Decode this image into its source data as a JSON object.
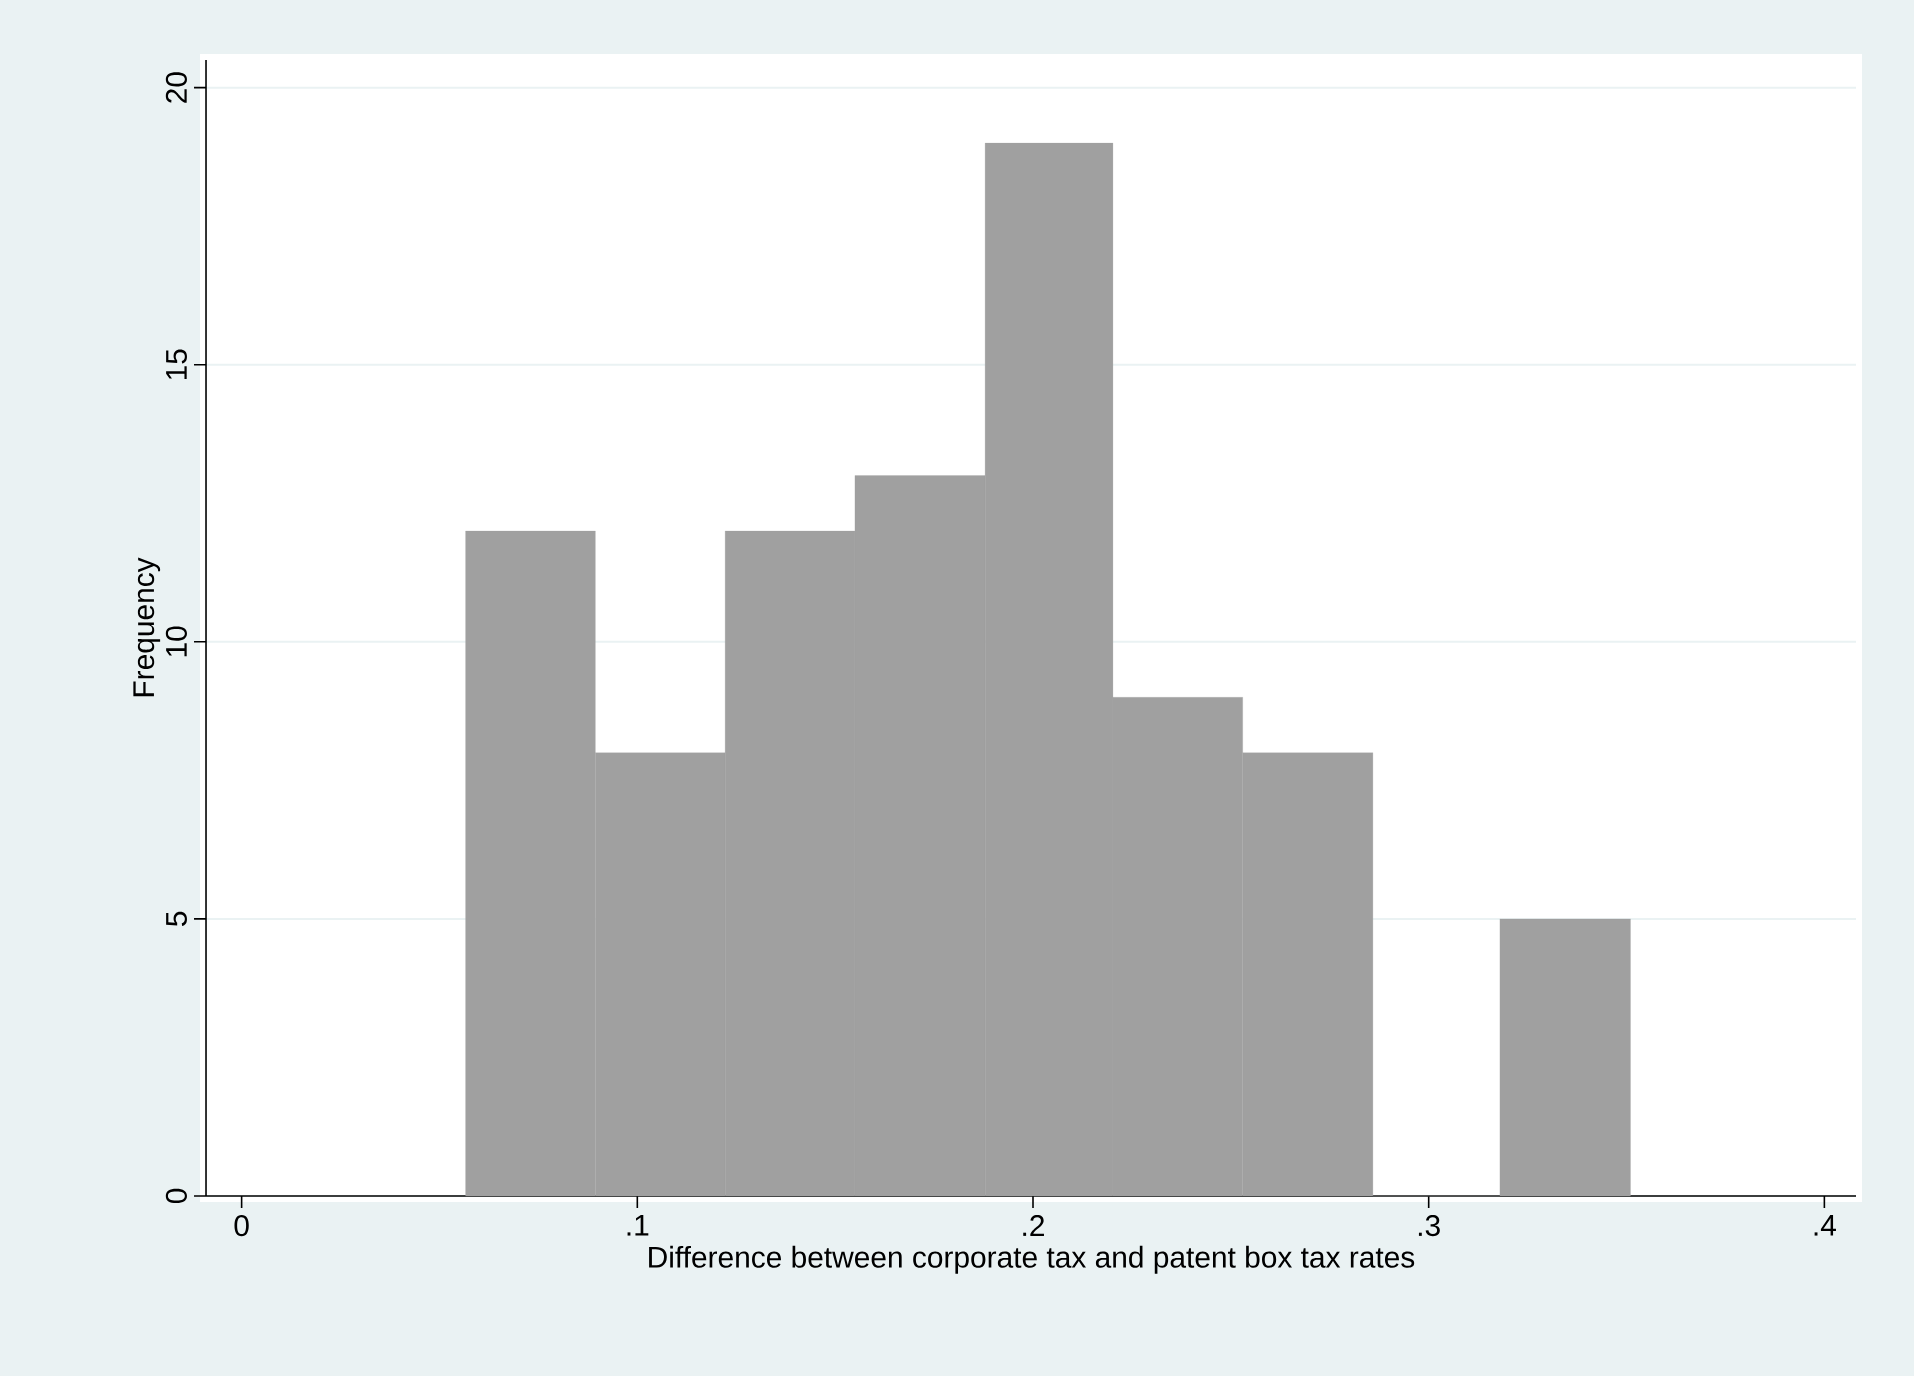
{
  "chart_data": {
    "type": "histogram",
    "xlabel": "Difference between corporate tax and patent box tax rates",
    "ylabel": "Frequency",
    "bins": [
      0.0566,
      0.0894,
      0.1222,
      0.155,
      0.1879,
      0.2202,
      0.253,
      0.2859,
      0.318,
      0.351
    ],
    "values": [
      12,
      8,
      12,
      13,
      19,
      9,
      8,
      0,
      5
    ],
    "color": "#a0a0a0",
    "xlim": [
      -0.009,
      0.408
    ],
    "ylim": [
      0,
      20.5
    ],
    "xticks": [
      0,
      {
        "value": 0.1,
        "label": ".1"
      },
      {
        "value": 0.2,
        "label": ".2"
      },
      {
        "value": 0.3,
        "label": ".3"
      },
      {
        "value": 0.4,
        "label": ".4"
      }
    ],
    "yticks": [
      0,
      5,
      10,
      15,
      20
    ],
    "grid": "y"
  }
}
